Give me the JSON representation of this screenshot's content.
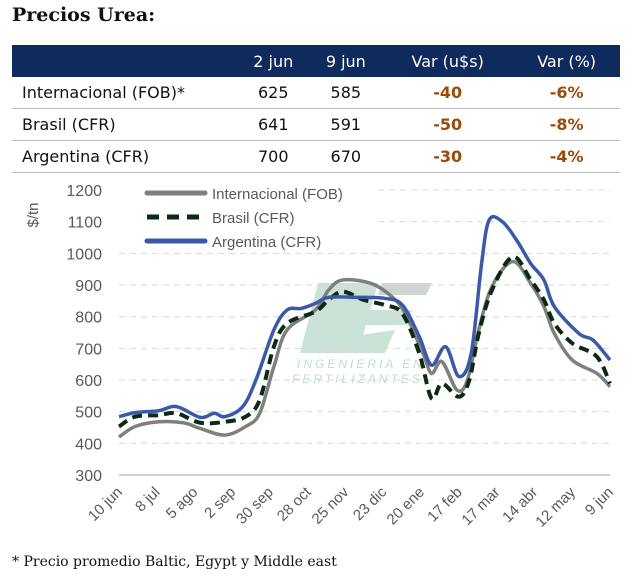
{
  "title": "Precios Urea:",
  "table": {
    "headers": [
      "",
      "2 jun",
      "9 jun",
      "Var (u$s)",
      "Var (%)"
    ],
    "rows": [
      [
        "Internacional (FOB)*",
        "625",
        "585",
        "-40",
        "-6%"
      ],
      [
        "Brasil (CFR)",
        "641",
        "591",
        "-50",
        "-8%"
      ],
      [
        "Argentina (CFR)",
        "700",
        "670",
        "-30",
        "-4%"
      ]
    ]
  },
  "footnote": "* Precio promedio Baltic, Egypt y Middle east",
  "watermark": {
    "line1": "INGENIERIA EN",
    "line2": "FERTILIZANTES"
  },
  "colors": {
    "header": "#0f2a5c",
    "var": "#9c4a06",
    "internacional": "#7f7f7f",
    "brasil": "#0b2a14",
    "argentina": "#3a5aa8"
  },
  "chart_data": {
    "type": "line",
    "ylabel": "$/tn",
    "ylim": [
      300,
      1200
    ],
    "yticks": [
      300,
      400,
      500,
      600,
      700,
      800,
      900,
      1000,
      1100,
      1200
    ],
    "xlim": [
      0,
      52
    ],
    "xunit": "weeks since 10 jun",
    "xticks": [
      {
        "x": 0,
        "label": "10 jun"
      },
      {
        "x": 4,
        "label": "8 jul"
      },
      {
        "x": 8,
        "label": "5 ago"
      },
      {
        "x": 12,
        "label": "2 sep"
      },
      {
        "x": 16,
        "label": "30 sep"
      },
      {
        "x": 20,
        "label": "28 oct"
      },
      {
        "x": 24,
        "label": "25 nov"
      },
      {
        "x": 28,
        "label": "23 dic"
      },
      {
        "x": 32,
        "label": "20 ene"
      },
      {
        "x": 36,
        "label": "17 feb"
      },
      {
        "x": 40,
        "label": "17 mar"
      },
      {
        "x": 44,
        "label": "14 abr"
      },
      {
        "x": 48,
        "label": "12 may"
      },
      {
        "x": 52,
        "label": "9 jun"
      }
    ],
    "grid": true,
    "legend": "top-left",
    "series": [
      {
        "name": "Internacional (FOB)",
        "style": "solid",
        "color": "#7f7f7f",
        "points": [
          [
            0,
            420
          ],
          [
            1.7,
            453
          ],
          [
            4.2,
            468
          ],
          [
            6.8,
            465
          ],
          [
            8.6,
            447
          ],
          [
            11.2,
            426
          ],
          [
            13.4,
            453
          ],
          [
            14.9,
            495
          ],
          [
            16.4,
            642
          ],
          [
            17.8,
            758
          ],
          [
            20.8,
            821
          ],
          [
            22.2,
            884
          ],
          [
            23.7,
            916
          ],
          [
            26.7,
            905
          ],
          [
            28.9,
            863
          ],
          [
            30.3,
            810
          ],
          [
            32.2,
            684
          ],
          [
            33.1,
            621
          ],
          [
            34.2,
            658
          ],
          [
            35.8,
            568
          ],
          [
            36.9,
            600
          ],
          [
            38.1,
            758
          ],
          [
            39.5,
            895
          ],
          [
            41.7,
            974
          ],
          [
            43.6,
            905
          ],
          [
            45,
            832
          ],
          [
            46.1,
            747
          ],
          [
            48,
            663
          ],
          [
            50.6,
            621
          ],
          [
            52,
            579
          ]
        ]
      },
      {
        "name": "Brasil (CFR)",
        "style": "dashed",
        "color": "#0b2a14",
        "points": [
          [
            0,
            453
          ],
          [
            1.7,
            484
          ],
          [
            4.2,
            489
          ],
          [
            6.1,
            495
          ],
          [
            8.6,
            465
          ],
          [
            11.2,
            468
          ],
          [
            13.4,
            484
          ],
          [
            14.9,
            537
          ],
          [
            16.4,
            705
          ],
          [
            17.8,
            779
          ],
          [
            20.8,
            816
          ],
          [
            22.2,
            853
          ],
          [
            23.7,
            879
          ],
          [
            25.9,
            853
          ],
          [
            28.1,
            837
          ],
          [
            30,
            810
          ],
          [
            31.8,
            684
          ],
          [
            33.1,
            542
          ],
          [
            34.2,
            589
          ],
          [
            36,
            547
          ],
          [
            37.1,
            600
          ],
          [
            38.1,
            747
          ],
          [
            39.5,
            884
          ],
          [
            41.7,
            989
          ],
          [
            43.6,
            916
          ],
          [
            45,
            853
          ],
          [
            46.1,
            779
          ],
          [
            48,
            716
          ],
          [
            50.6,
            674
          ],
          [
            52,
            589
          ]
        ]
      },
      {
        "name": "Argentina (CFR)",
        "style": "solid",
        "color": "#3a5aa8",
        "points": [
          [
            0,
            484
          ],
          [
            1.7,
            497
          ],
          [
            4.2,
            503
          ],
          [
            6.1,
            516
          ],
          [
            8.6,
            482
          ],
          [
            10.1,
            495
          ],
          [
            11.2,
            484
          ],
          [
            13.1,
            516
          ],
          [
            14.5,
            600
          ],
          [
            16.4,
            758
          ],
          [
            17.8,
            821
          ],
          [
            19.3,
            826
          ],
          [
            20.8,
            842
          ],
          [
            22.2,
            861
          ],
          [
            25.2,
            861
          ],
          [
            28.1,
            858
          ],
          [
            30,
            837
          ],
          [
            31.8,
            737
          ],
          [
            33.1,
            647
          ],
          [
            34.6,
            705
          ],
          [
            36,
            611
          ],
          [
            37.3,
            684
          ],
          [
            38.4,
            968
          ],
          [
            39.2,
            1105
          ],
          [
            40.6,
            1100
          ],
          [
            42.1,
            1042
          ],
          [
            43.6,
            968
          ],
          [
            45,
            916
          ],
          [
            46.1,
            832
          ],
          [
            48.7,
            747
          ],
          [
            50.2,
            726
          ],
          [
            52,
            663
          ]
        ]
      }
    ]
  }
}
